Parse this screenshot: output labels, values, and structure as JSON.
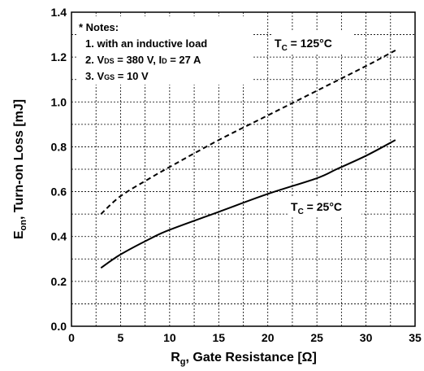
{
  "chart_data": {
    "type": "line",
    "title": "",
    "xlabel": {
      "main": "R",
      "sub": "g",
      "rest": ", Gate Resistance [Ω]"
    },
    "ylabel": {
      "main": "E",
      "sub": "on",
      "rest": ", Turn-on Loss [mJ]"
    },
    "xlim": [
      0,
      35
    ],
    "ylim": [
      0.0,
      1.4
    ],
    "xticks": [
      "0",
      "5",
      "10",
      "15",
      "20",
      "25",
      "30",
      "35"
    ],
    "yticks": [
      "0.0",
      "0.2",
      "0.4",
      "0.6",
      "0.8",
      "1.0",
      "1.2",
      "1.4"
    ],
    "grid": "dotted",
    "notes": {
      "title": "* Notes:",
      "line1": "1. with an inductive load",
      "line2a": "2. V",
      "line2b": "DS",
      "line2c": " = 380 V, I",
      "line2d": "D",
      "line2e": " = 27 A",
      "line3a": "3. V",
      "line3b": "GS",
      "line3c": " = 10 V"
    },
    "series": [
      {
        "label_main": "T",
        "label_sub": "C",
        "label_rest": " = 125°C",
        "style": "dashed",
        "color": "#000000",
        "x": [
          3,
          5,
          8,
          10,
          15,
          20,
          25,
          30,
          33
        ],
        "y": [
          0.5,
          0.58,
          0.66,
          0.71,
          0.83,
          0.94,
          1.05,
          1.16,
          1.23
        ]
      },
      {
        "label_main": "T",
        "label_sub": "C",
        "label_rest": " = 25°C",
        "style": "solid",
        "color": "#000000",
        "x": [
          3,
          5,
          8,
          10,
          15,
          20,
          25,
          27,
          30,
          33
        ],
        "y": [
          0.26,
          0.32,
          0.39,
          0.43,
          0.51,
          0.59,
          0.66,
          0.7,
          0.76,
          0.83
        ]
      }
    ]
  }
}
